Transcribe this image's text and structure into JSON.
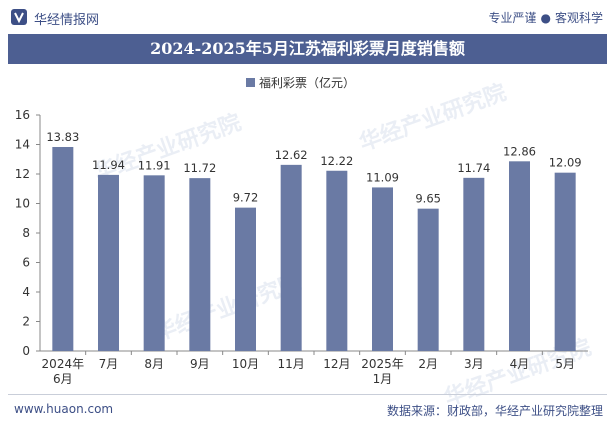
{
  "header": {
    "site_name": "华经情报网",
    "slogan_left": "专业严谨",
    "slogan_right": "客观科学"
  },
  "title": "2024-2025年5月江苏福利彩票月度销售额",
  "footer": {
    "url": "www.huaon.com",
    "source": "数据来源：财政部，华经产业研究院整理"
  },
  "watermark": "华经产业研究院",
  "colors": {
    "bar": "#6a7aa4",
    "brand": "#3d4f86"
  },
  "chart_data": {
    "type": "bar",
    "categories": [
      "2024年\n6月",
      "7月",
      "8月",
      "9月",
      "10月",
      "11月",
      "12月",
      "2025年\n1月",
      "2月",
      "3月",
      "4月",
      "5月"
    ],
    "series": [
      {
        "name": "福利彩票（亿元）",
        "values": [
          13.83,
          11.94,
          11.91,
          11.72,
          9.72,
          12.62,
          12.22,
          11.09,
          9.65,
          11.74,
          12.86,
          12.09
        ]
      }
    ],
    "yticks": [
      0,
      2,
      4,
      6,
      8,
      10,
      12,
      14,
      16
    ],
    "ylim": [
      0,
      16
    ],
    "legend_position": "top-center",
    "grid": false
  }
}
